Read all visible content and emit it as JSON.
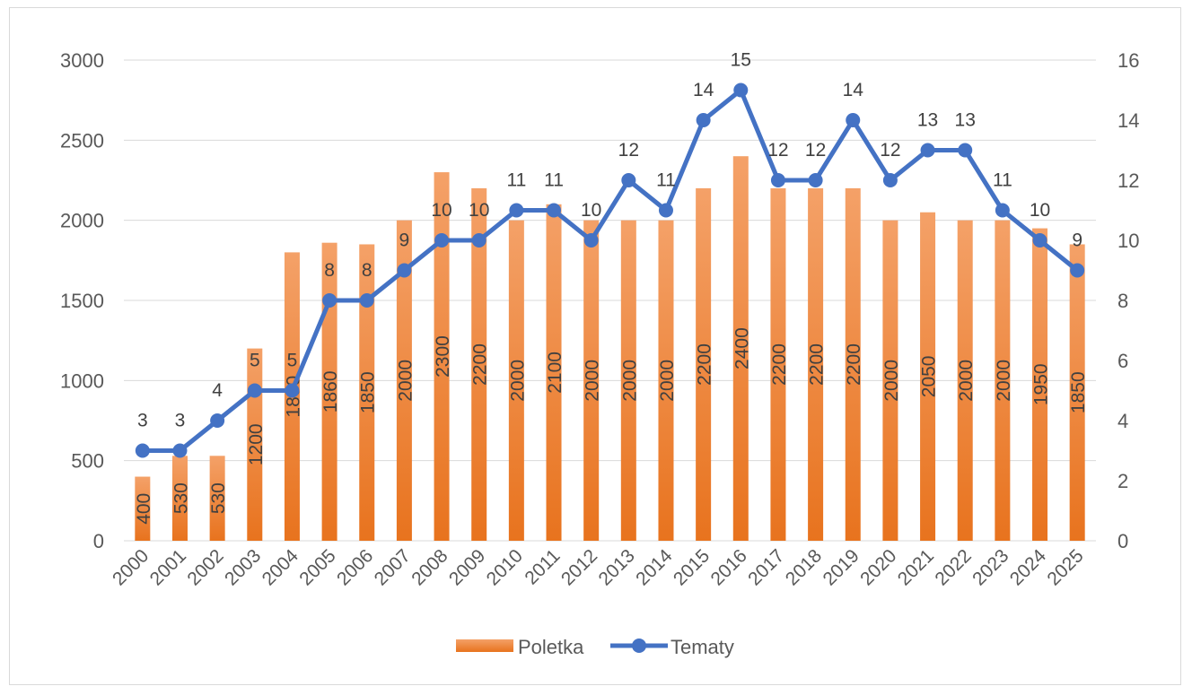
{
  "chart_data": {
    "type": "bar",
    "combo": "bar+line",
    "title": "",
    "categories": [
      "2000",
      "2001",
      "2002",
      "2003",
      "2004",
      "2005",
      "2006",
      "2007",
      "2008",
      "2009",
      "2010",
      "2011",
      "2012",
      "2013",
      "2014",
      "2015",
      "2016",
      "2017",
      "2018",
      "2019",
      "2020",
      "2021",
      "2022",
      "2023",
      "2024",
      "2025"
    ],
    "series": [
      {
        "name": "Poletka",
        "type": "bar",
        "axis": "left",
        "color": "#ED7D31",
        "values": [
          400,
          530,
          530,
          1200,
          1800,
          1860,
          1850,
          2000,
          2300,
          2200,
          2000,
          2100,
          2000,
          2000,
          2000,
          2200,
          2400,
          2200,
          2200,
          2200,
          2000,
          2050,
          2000,
          2000,
          1950,
          1850
        ],
        "labels": [
          "400",
          "530",
          "530",
          "1200",
          "1800",
          "1860",
          "1850",
          "2000",
          "2300",
          "2200",
          "2000",
          "2100",
          "2000",
          "2000",
          "2000",
          "2200",
          "2400",
          "2200",
          "2200",
          "2200",
          "2000",
          "2050",
          "2000",
          "2000",
          "1950",
          "1850"
        ]
      },
      {
        "name": "Tematy",
        "type": "line",
        "axis": "right",
        "color": "#4472C4",
        "values": [
          3,
          3,
          4,
          5,
          5,
          8,
          8,
          9,
          10,
          10,
          11,
          11,
          10,
          12,
          11,
          14,
          15,
          12,
          12,
          14,
          12,
          13,
          13,
          11,
          10,
          9
        ],
        "labels": [
          "3",
          "3",
          "4",
          "5",
          "5",
          "8",
          "8",
          "9",
          "10",
          "10",
          "11",
          "11",
          "10",
          "12",
          "11",
          "14",
          "15",
          "12",
          "12",
          "14",
          "12",
          "13",
          "13",
          "11",
          "10",
          "9"
        ]
      }
    ],
    "y_left": {
      "min": 0,
      "max": 3000,
      "ticks": [
        0,
        500,
        1000,
        1500,
        2000,
        2500,
        3000
      ],
      "tick_labels": [
        "0",
        "500",
        "1000",
        "1500",
        "2000",
        "2500",
        "3000"
      ]
    },
    "y_right": {
      "min": 0,
      "max": 16,
      "ticks": [
        0,
        2,
        4,
        6,
        8,
        10,
        12,
        14,
        16
      ],
      "tick_labels": [
        "0",
        "2",
        "4",
        "6",
        "8",
        "10",
        "12",
        "14",
        "16"
      ]
    },
    "grid": true,
    "legend": {
      "position": "bottom",
      "items": [
        "Poletka",
        "Tematy"
      ]
    }
  }
}
